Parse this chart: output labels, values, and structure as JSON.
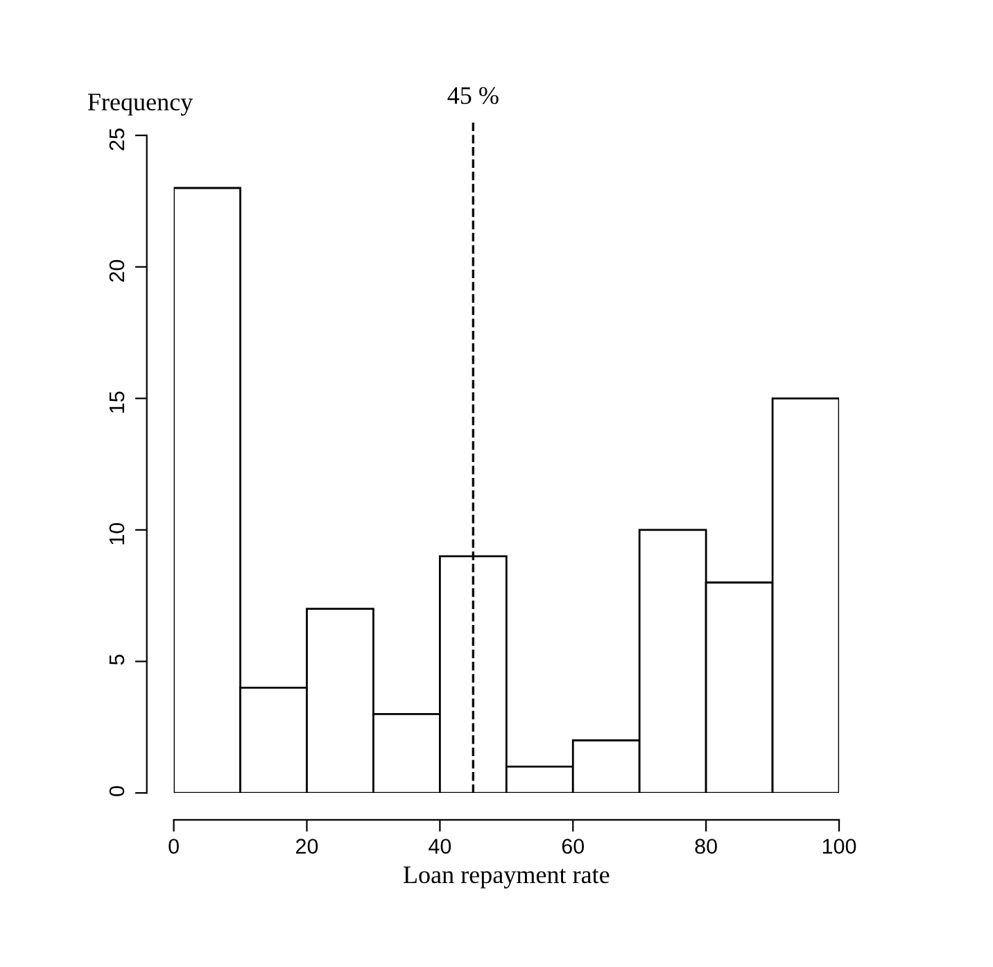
{
  "chart_data": {
    "type": "histogram",
    "xlabel": "Loan repayment rate",
    "ylabel": "Frequency",
    "bins": [
      0,
      10,
      20,
      30,
      40,
      50,
      60,
      70,
      80,
      90,
      100
    ],
    "values": [
      23,
      4,
      7,
      3,
      9,
      1,
      2,
      10,
      8,
      15
    ],
    "color": "#ffffff",
    "xlim": [
      0,
      100
    ],
    "xticks": [
      0,
      20,
      40,
      60,
      80,
      100
    ],
    "ylim": [
      0,
      25
    ],
    "yticks": [
      0,
      5,
      10,
      15,
      20,
      25
    ],
    "ref_lines": [
      {
        "axis": "x",
        "value": 45,
        "label": "45 %",
        "line_style": "dashed",
        "color": "#000000"
      }
    ],
    "grid": false
  }
}
